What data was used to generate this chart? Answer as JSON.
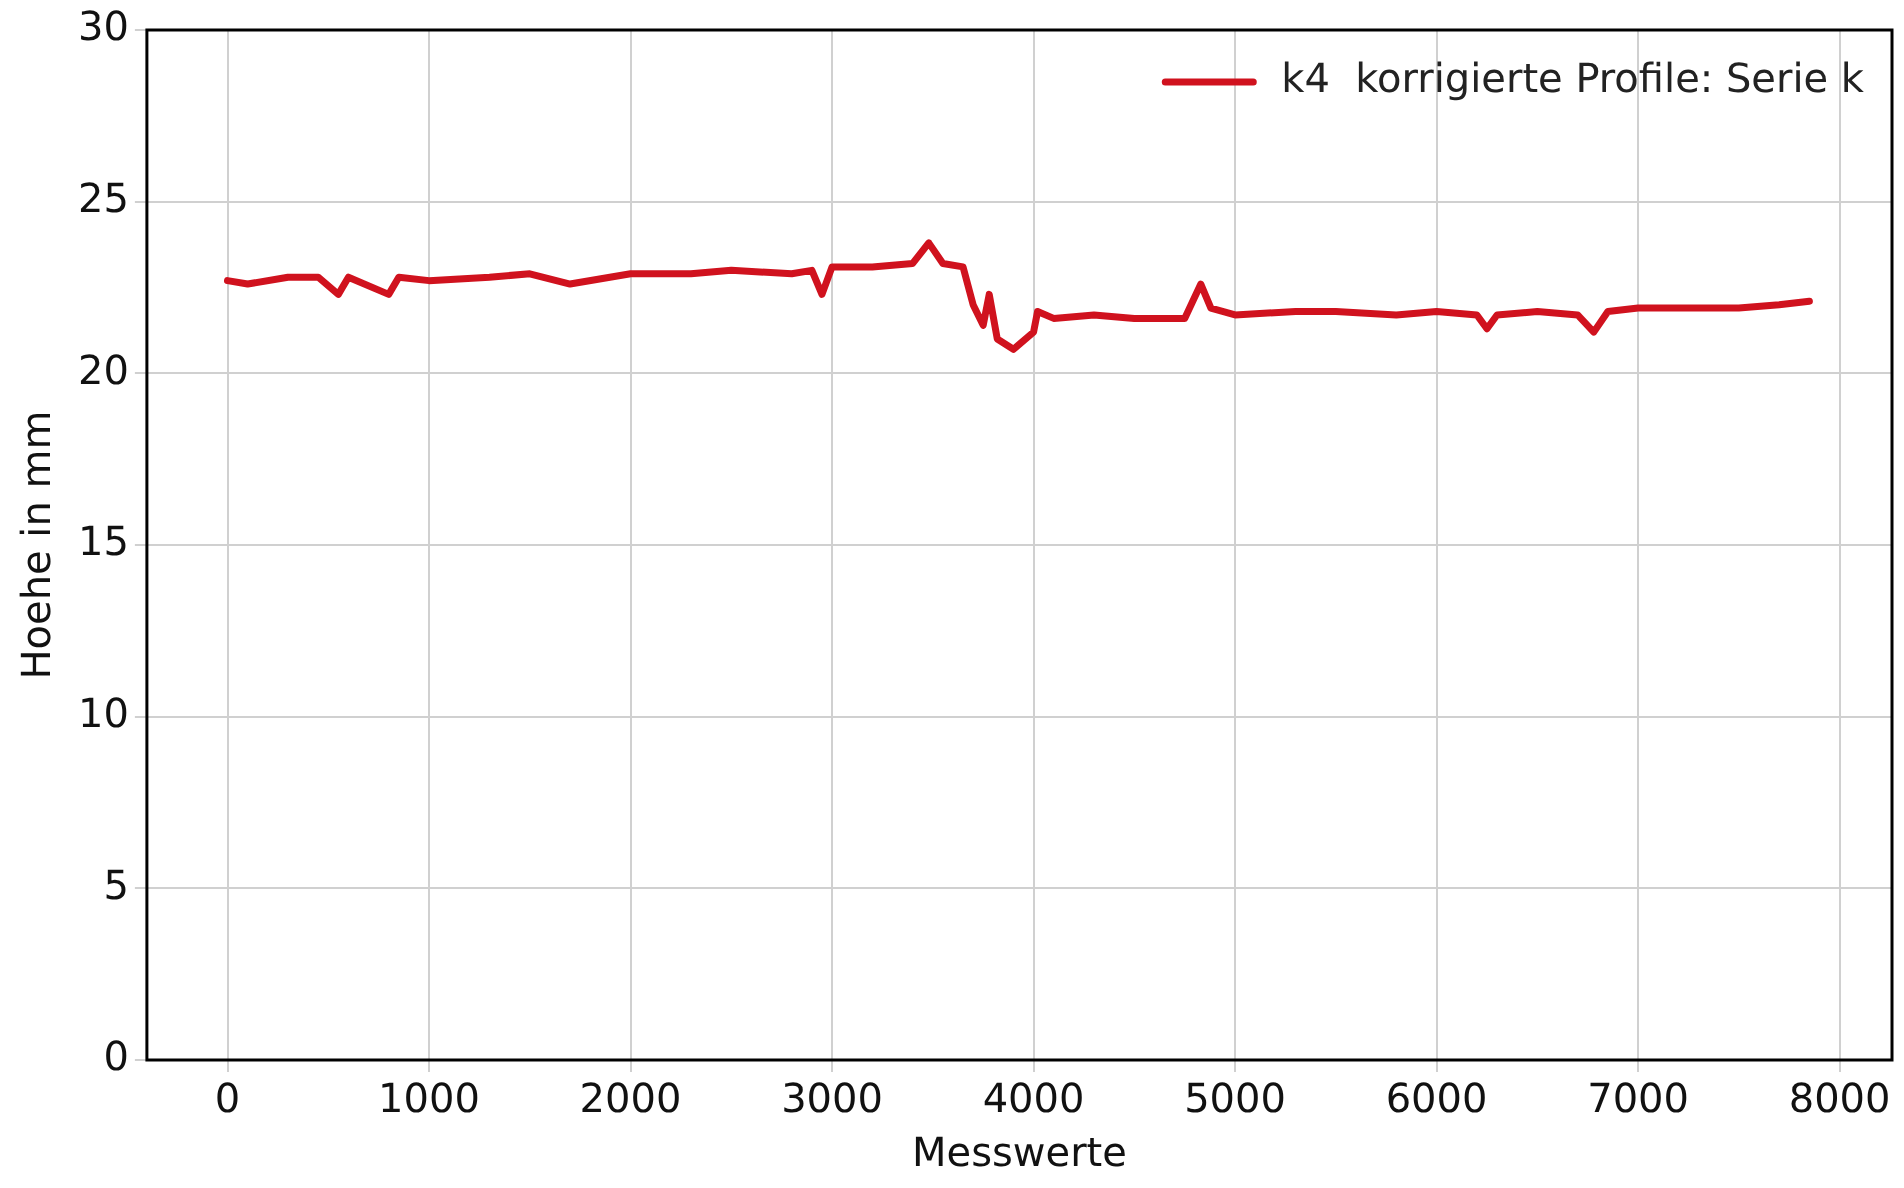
{
  "chart_data": {
    "type": "line",
    "xlabel": "Messwerte",
    "ylabel": "Hoehe in mm",
    "xlim": [
      -400,
      8260
    ],
    "xticks": [
      0,
      1000,
      2000,
      3000,
      4000,
      5000,
      6000,
      7000,
      8000
    ],
    "ylim": [
      0,
      30
    ],
    "yticks": [
      0,
      5,
      10,
      15,
      20,
      25,
      30
    ],
    "grid": true,
    "legend": "top right",
    "marker": "none",
    "line_style": "solid",
    "series": [
      {
        "name": "k4  korrigierte Profile: Serie k",
        "color": "#d0121e",
        "x": [
          0,
          100,
          300,
          450,
          550,
          600,
          800,
          850,
          1000,
          1300,
          1500,
          1700,
          2000,
          2300,
          2500,
          2800,
          2900,
          2950,
          3000,
          3200,
          3400,
          3480,
          3550,
          3650,
          3700,
          3750,
          3780,
          3820,
          3900,
          4000,
          4020,
          4100,
          4300,
          4500,
          4750,
          4830,
          4880,
          5000,
          5300,
          5500,
          5800,
          6000,
          6200,
          6250,
          6300,
          6500,
          6700,
          6780,
          6850,
          7000,
          7200,
          7500,
          7700,
          7850
        ],
        "values": [
          22.7,
          22.6,
          22.8,
          22.8,
          22.3,
          22.8,
          22.3,
          22.8,
          22.7,
          22.8,
          22.9,
          22.6,
          22.9,
          22.9,
          23.0,
          22.9,
          23.0,
          22.3,
          23.1,
          23.1,
          23.2,
          23.8,
          23.2,
          23.1,
          22.0,
          21.4,
          22.3,
          21.0,
          20.7,
          21.2,
          21.8,
          21.6,
          21.7,
          21.6,
          21.6,
          22.6,
          21.9,
          21.7,
          21.8,
          21.8,
          21.7,
          21.8,
          21.7,
          21.3,
          21.7,
          21.8,
          21.7,
          21.2,
          21.8,
          21.9,
          21.9,
          21.9,
          22.0,
          22.1
        ]
      }
    ]
  }
}
